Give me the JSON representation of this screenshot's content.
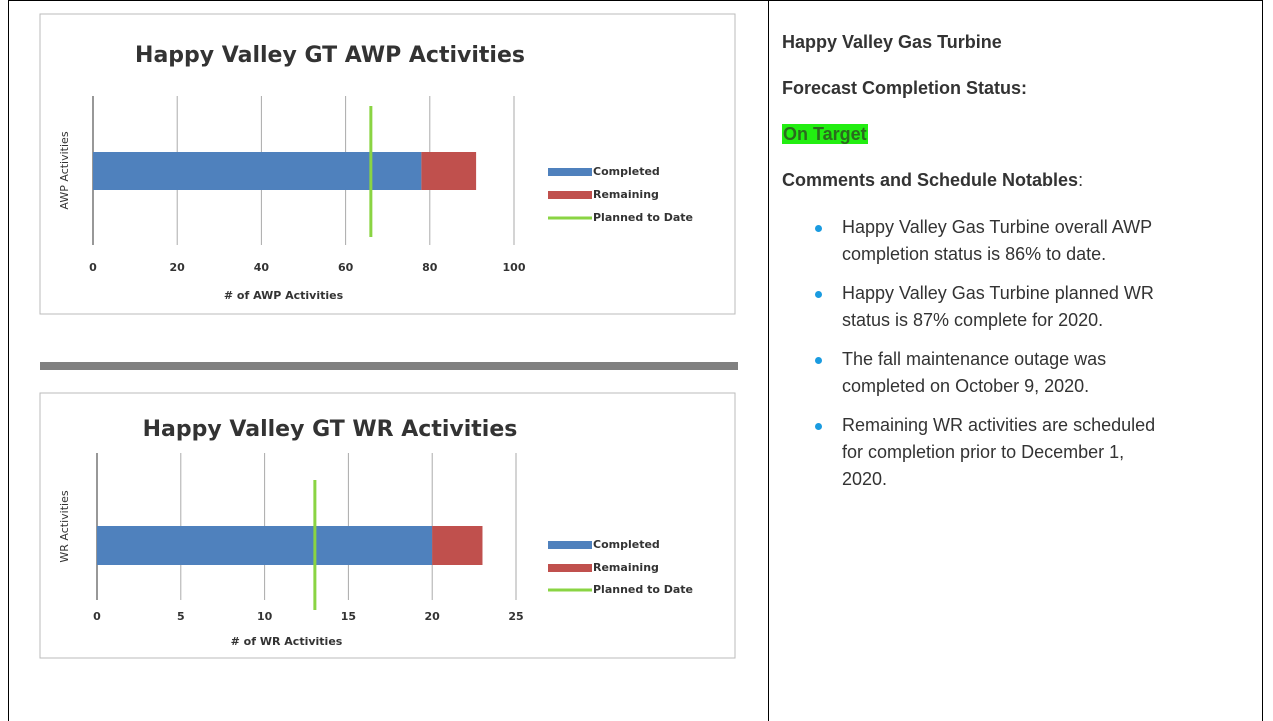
{
  "chart_data": [
    {
      "type": "bar",
      "orientation": "horizontal",
      "stacked": true,
      "title": "Happy Valley GT AWP Activities",
      "xlabel": "# of AWP Activities",
      "ylabel": "AWP Activities",
      "categories": [
        null
      ],
      "series": [
        {
          "name": "Completed",
          "color": "#4f81bd",
          "values": [
            78
          ]
        },
        {
          "name": "Remaining",
          "color": "#c0504d",
          "values": [
            13
          ]
        },
        {
          "name": "Planned to Date",
          "color": "#8ad443",
          "type": "line",
          "values": [
            66
          ]
        }
      ],
      "xlim": [
        0,
        100
      ],
      "xticks": [
        0,
        20,
        40,
        60,
        80,
        100
      ],
      "grid": true,
      "legend": "right"
    },
    {
      "type": "bar",
      "orientation": "horizontal",
      "stacked": true,
      "title": "Happy Valley GT WR Activities",
      "xlabel": "# of WR Activities",
      "ylabel": "WR Activities",
      "categories": [
        null
      ],
      "series": [
        {
          "name": "Completed",
          "color": "#4f81bd",
          "values": [
            20
          ]
        },
        {
          "name": "Remaining",
          "color": "#c0504d",
          "values": [
            3
          ]
        },
        {
          "name": "Planned to Date",
          "color": "#8ad443",
          "type": "line",
          "values": [
            13
          ]
        }
      ],
      "xlim": [
        0,
        25
      ],
      "xticks": [
        0,
        5,
        10,
        15,
        20,
        25
      ],
      "grid": true,
      "legend": "right"
    }
  ],
  "panel": {
    "title": "Happy Valley Gas Turbine",
    "status_label": "Forecast Completion Status:",
    "status": "On Target",
    "comments_heading": "Comments and Schedule Notables",
    "comments_suffix": ":",
    "bullets": [
      "Happy Valley Gas Turbine overall AWP completion status is 86% to date.",
      "Happy Valley Gas Turbine planned WR status is 87% complete for 2020.",
      "The fall maintenance outage  was completed on October 9, 2020.",
      "Remaining WR activities are scheduled for completion prior to December 1, 2020."
    ]
  }
}
